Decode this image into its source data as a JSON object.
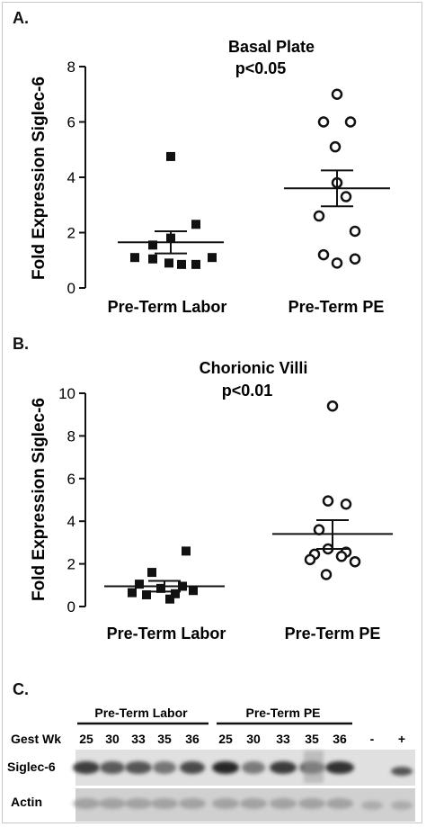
{
  "panels": {
    "a": {
      "letter": "A."
    },
    "b": {
      "letter": "B."
    },
    "c": {
      "letter": "C."
    }
  },
  "chart_data": [
    {
      "type": "scatter",
      "title": "Basal Plate",
      "subtitle": "p<0.05",
      "ylabel": "Fold Expression Siglec-6",
      "ylim": [
        0,
        8
      ],
      "yticks": [
        0,
        2,
        4,
        6,
        8
      ],
      "categories": [
        "Pre-Term Labor",
        "Pre-Term PE"
      ],
      "series": [
        {
          "marker": "filled-square",
          "values": [
            4.75,
            2.3,
            1.8,
            1.55,
            1.1,
            1.05,
            0.9,
            0.85,
            0.85,
            1.1
          ],
          "mean": 1.65,
          "sem_upper": 2.05,
          "sem_lower": 1.25
        },
        {
          "marker": "open-circle",
          "values": [
            7.0,
            6.0,
            6.0,
            5.1,
            3.8,
            3.3,
            2.6,
            2.05,
            1.2,
            0.9,
            1.05
          ],
          "mean": 3.6,
          "sem_upper": 4.25,
          "sem_lower": 2.95
        }
      ]
    },
    {
      "type": "scatter",
      "title": "Chorionic Villi",
      "subtitle": "p<0.01",
      "ylabel": "Fold Expression Siglec-6",
      "ylim": [
        0,
        10
      ],
      "yticks": [
        0,
        2,
        4,
        6,
        8,
        10
      ],
      "categories": [
        "Pre-Term Labor",
        "Pre-Term PE"
      ],
      "series": [
        {
          "marker": "filled-square",
          "values": [
            2.6,
            1.6,
            1.05,
            0.95,
            0.85,
            0.75,
            0.65,
            0.6,
            0.55,
            0.35
          ],
          "mean": 0.95,
          "sem_upper": 1.2,
          "sem_lower": 0.7
        },
        {
          "marker": "open-circle",
          "values": [
            9.4,
            4.95,
            4.8,
            3.6,
            2.7,
            2.55,
            2.45,
            2.35,
            2.2,
            2.1,
            1.5
          ],
          "mean": 3.4,
          "sem_upper": 4.05,
          "sem_lower": 2.7
        }
      ]
    }
  ],
  "blot": {
    "group_labels": [
      "Pre-Term Labor",
      "Pre-Term PE"
    ],
    "gest_label": "Gest Wk",
    "weeks": [
      "25",
      "30",
      "33",
      "35",
      "36",
      "25",
      "30",
      "33",
      "35",
      "36"
    ],
    "controls": [
      "-",
      "+"
    ],
    "row_labels": [
      "Siglec-6",
      "Actin"
    ]
  }
}
